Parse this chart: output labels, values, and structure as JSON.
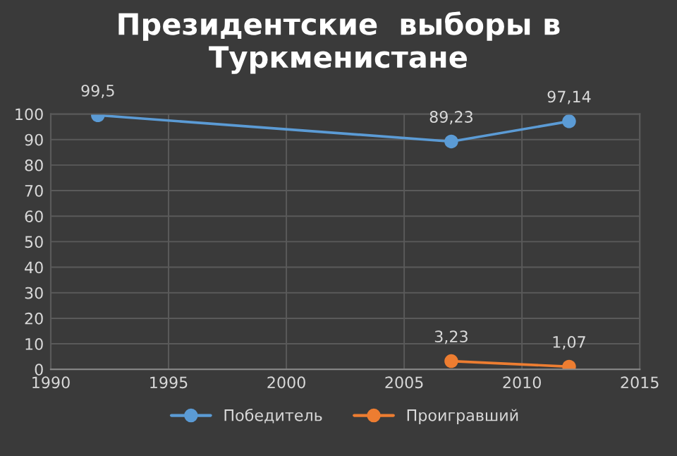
{
  "chart_data": {
    "type": "line",
    "title": "Президентские  выборы в Туркменистане",
    "series": [
      {
        "name": "Победитель",
        "color": "#5b9bd5",
        "x": [
          1992,
          2007,
          2012
        ],
        "values": [
          99.5,
          89.23,
          97.14
        ],
        "value_labels": [
          "99,5",
          "89,23",
          "97,14"
        ]
      },
      {
        "name": "Проигравший",
        "color": "#ed7d31",
        "x": [
          2007,
          2012
        ],
        "values": [
          3.23,
          1.07
        ],
        "value_labels": [
          "3,23",
          "1,07"
        ]
      }
    ],
    "xlim": [
      1990,
      2015
    ],
    "xticks": [
      1990,
      1995,
      2000,
      2005,
      2010,
      2015
    ],
    "ylim": [
      0,
      100
    ],
    "yticks": [
      0,
      10,
      20,
      30,
      40,
      50,
      60,
      70,
      80,
      90,
      100
    ],
    "grid": true,
    "legend": "bottom",
    "marker": "circle",
    "line_style": "solid"
  }
}
